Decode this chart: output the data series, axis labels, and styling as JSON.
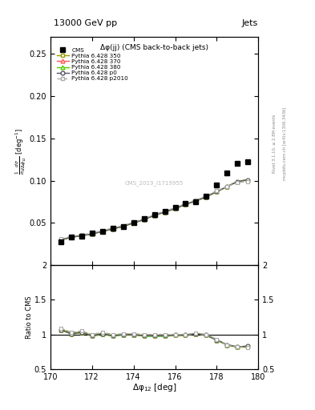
{
  "title": "13000 GeV pp",
  "title_right": "Jets",
  "plot_title": "Δφ(jj) (CMS back-to-back jets)",
  "xlabel": "Δφ$_{12}$ [deg]",
  "ylabel": "$\\frac{1}{\\sigma}\\frac{d\\sigma}{d\\Delta\\phi_{12}}$ [deg$^{-1}$]",
  "ylabel_ratio": "Ratio to CMS",
  "watermark": "CMS_2019_I1719955",
  "rivet_label": "Rivet 3.1.10, ≥ 2.8M events",
  "mcplots_label": "mcplots.cern.ch [arXiv:1306.3436]",
  "xlim": [
    170,
    180
  ],
  "ylim_main": [
    0.0,
    0.27
  ],
  "ylim_ratio": [
    0.5,
    2.0
  ],
  "yticks_main": [
    0.05,
    0.1,
    0.15,
    0.2,
    0.25
  ],
  "yticks_ratio": [
    0.5,
    1.0,
    1.5,
    2.0
  ],
  "cms_x": [
    170.5,
    171.0,
    171.5,
    172.0,
    172.5,
    173.0,
    173.5,
    174.0,
    174.5,
    175.0,
    175.5,
    176.0,
    176.5,
    177.0,
    177.5,
    178.0,
    178.5,
    179.0,
    179.5
  ],
  "cms_y": [
    0.028,
    0.033,
    0.034,
    0.038,
    0.04,
    0.044,
    0.046,
    0.05,
    0.055,
    0.06,
    0.064,
    0.068,
    0.073,
    0.075,
    0.082,
    0.095,
    0.109,
    0.12,
    0.122
  ],
  "p350_y": [
    0.03,
    0.033,
    0.035,
    0.037,
    0.04,
    0.043,
    0.046,
    0.05,
    0.054,
    0.059,
    0.063,
    0.067,
    0.072,
    0.076,
    0.081,
    0.087,
    0.093,
    0.099,
    0.101
  ],
  "p370_y": [
    0.03,
    0.033,
    0.035,
    0.037,
    0.04,
    0.043,
    0.046,
    0.05,
    0.054,
    0.059,
    0.063,
    0.067,
    0.072,
    0.076,
    0.081,
    0.087,
    0.093,
    0.099,
    0.101
  ],
  "p380_y": [
    0.03,
    0.033,
    0.035,
    0.037,
    0.04,
    0.043,
    0.046,
    0.05,
    0.054,
    0.059,
    0.063,
    0.067,
    0.072,
    0.076,
    0.081,
    0.087,
    0.093,
    0.099,
    0.101
  ],
  "p0_y": [
    0.03,
    0.033,
    0.035,
    0.037,
    0.04,
    0.043,
    0.046,
    0.05,
    0.054,
    0.059,
    0.063,
    0.067,
    0.072,
    0.076,
    0.081,
    0.087,
    0.093,
    0.099,
    0.101
  ],
  "p2010_y": [
    0.031,
    0.034,
    0.036,
    0.038,
    0.041,
    0.044,
    0.047,
    0.051,
    0.055,
    0.06,
    0.064,
    0.068,
    0.073,
    0.077,
    0.082,
    0.088,
    0.093,
    0.098,
    0.099
  ],
  "ratio_p350_y": [
    1.07,
    1.01,
    1.03,
    0.98,
    1.01,
    0.98,
    1.0,
    1.0,
    0.98,
    0.98,
    0.98,
    0.99,
    0.99,
    1.01,
    0.99,
    0.92,
    0.85,
    0.82,
    0.83
  ],
  "ratio_p370_y": [
    1.07,
    1.01,
    1.03,
    0.98,
    1.01,
    0.98,
    1.0,
    1.0,
    0.98,
    0.98,
    0.98,
    0.99,
    0.99,
    1.01,
    0.99,
    0.92,
    0.85,
    0.82,
    0.83
  ],
  "ratio_p380_y": [
    1.07,
    1.01,
    1.03,
    0.98,
    1.01,
    0.98,
    1.0,
    1.0,
    0.98,
    0.98,
    0.98,
    0.99,
    0.99,
    1.01,
    0.99,
    0.92,
    0.85,
    0.82,
    0.83
  ],
  "ratio_p0_y": [
    1.07,
    1.01,
    1.03,
    0.98,
    1.01,
    0.98,
    1.0,
    1.0,
    0.98,
    0.98,
    0.98,
    0.99,
    0.99,
    1.01,
    0.99,
    0.92,
    0.85,
    0.82,
    0.83
  ],
  "ratio_p2010_y": [
    1.09,
    1.03,
    1.05,
    1.0,
    1.03,
    1.0,
    1.01,
    1.01,
    1.0,
    1.0,
    1.0,
    1.0,
    1.0,
    1.02,
    1.0,
    0.93,
    0.85,
    0.82,
    0.81
  ],
  "color_p350": "#999900",
  "color_p370": "#ff5555",
  "color_p380": "#55cc00",
  "color_p0": "#555566",
  "color_p2010": "#aaaaaa",
  "band_inner_color": "#00dd00",
  "band_outer_color": "#cccc00",
  "band_inner_alpha": 0.5,
  "band_outer_alpha": 0.45
}
